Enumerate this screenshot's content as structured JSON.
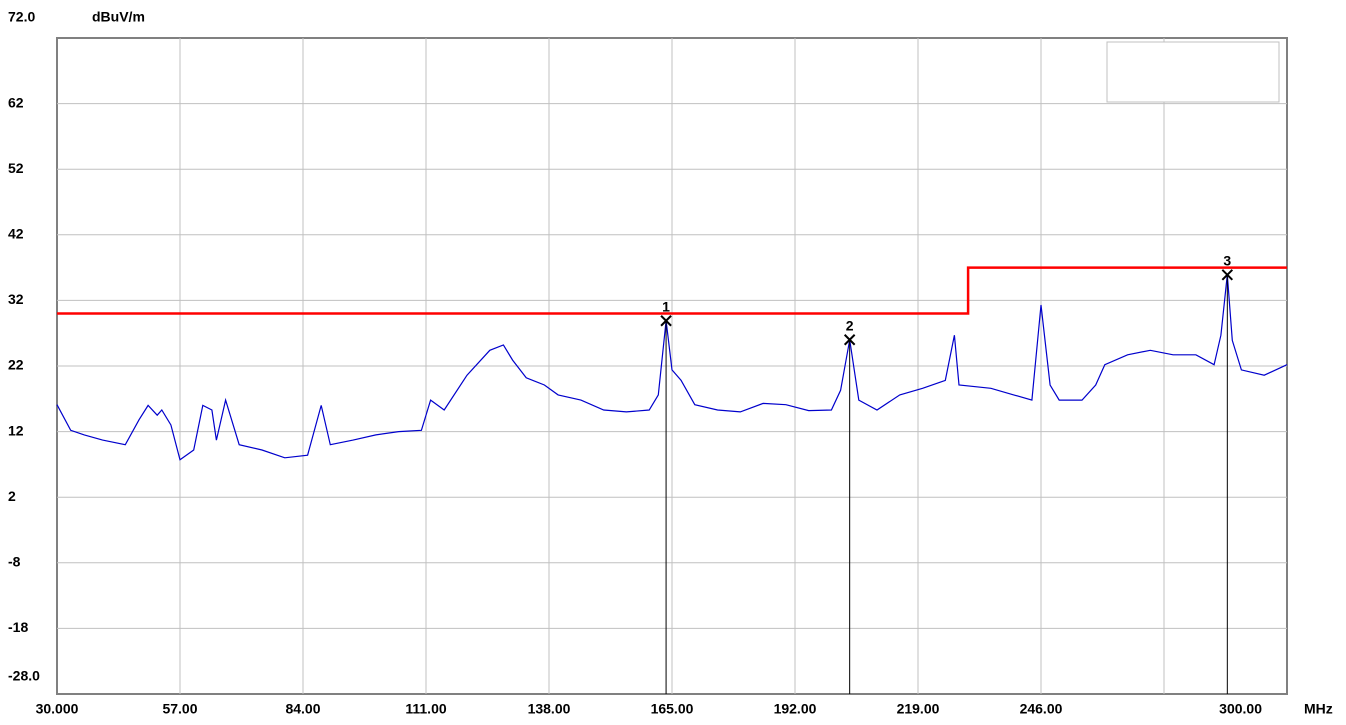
{
  "chart_data": {
    "type": "line",
    "y_label": "dBuV/m",
    "x_label": "MHz",
    "xlim": [
      30,
      300
    ],
    "ylim": [
      -28,
      72
    ],
    "xticks": [
      {
        "value": 30,
        "label": "30.000"
      },
      {
        "value": 57,
        "label": "57.00"
      },
      {
        "value": 84,
        "label": "84.00"
      },
      {
        "value": 111,
        "label": "111.00"
      },
      {
        "value": 138,
        "label": "138.00"
      },
      {
        "value": 165,
        "label": "165.00"
      },
      {
        "value": 192,
        "label": "192.00"
      },
      {
        "value": 219,
        "label": "219.00"
      },
      {
        "value": 246,
        "label": "246.00"
      },
      {
        "value": 300,
        "label": "300.00"
      }
    ],
    "xgrid": [
      57,
      84,
      111,
      138,
      165,
      192,
      219,
      246,
      273
    ],
    "yticks": [
      {
        "value": -28,
        "label": "-28.0"
      },
      -18,
      -8,
      2,
      12,
      22,
      32,
      42,
      52,
      62,
      {
        "value": 72,
        "label": "72.0"
      }
    ],
    "grid": true,
    "series": [
      {
        "color": "#0000cc",
        "x": [
          30,
          33,
          36,
          40,
          45,
          48,
          50,
          52,
          53,
          55,
          57,
          60,
          62,
          64,
          65,
          67,
          70,
          75,
          80,
          85,
          88,
          90,
          95,
          100,
          105,
          110,
          112,
          115,
          120,
          125,
          128,
          130,
          133,
          137,
          140,
          145,
          150,
          155,
          160,
          162,
          163.7,
          165,
          167,
          170,
          175,
          180,
          185,
          190,
          195,
          200,
          202,
          204,
          206,
          210,
          215,
          220,
          225,
          227,
          228,
          235,
          240,
          244,
          246,
          248,
          250,
          255,
          258,
          260,
          265,
          270,
          275,
          280,
          284,
          285.5,
          286.9,
          288,
          290,
          295,
          300
        ],
        "values": [
          16.1,
          12.2,
          11.5,
          10.7,
          10,
          13.8,
          16,
          14.5,
          15.3,
          13,
          7.7,
          9.2,
          16,
          15.3,
          10.7,
          16.8,
          10,
          9.2,
          8,
          8.4,
          16,
          10,
          10.7,
          11.5,
          12,
          12.2,
          16.8,
          15.3,
          20.6,
          24.4,
          25.2,
          22.9,
          20.2,
          19.1,
          17.6,
          16.8,
          15.3,
          15,
          15.3,
          17.6,
          28.9,
          21.4,
          19.8,
          16.1,
          15.3,
          15,
          16.3,
          16.1,
          15.2,
          15.3,
          18.3,
          26,
          16.8,
          15.3,
          17.6,
          18.6,
          19.8,
          26.7,
          19.1,
          18.6,
          17.6,
          16.8,
          31.3,
          19.1,
          16.8,
          16.8,
          19.1,
          22.2,
          23.7,
          24.4,
          23.7,
          23.7,
          22.2,
          26.7,
          35.9,
          25.9,
          21.4,
          20.6,
          22.2
        ]
      },
      {
        "color": "#ff0000",
        "x": [
          30,
          230,
          230,
          300
        ],
        "values": [
          30,
          30,
          37,
          37
        ]
      }
    ],
    "markers": {
      "labels": [
        "1",
        "2",
        "3"
      ],
      "x": [
        163.7,
        204,
        286.9
      ],
      "values": [
        28.9,
        26,
        35.9
      ],
      "color": "#000000"
    }
  }
}
